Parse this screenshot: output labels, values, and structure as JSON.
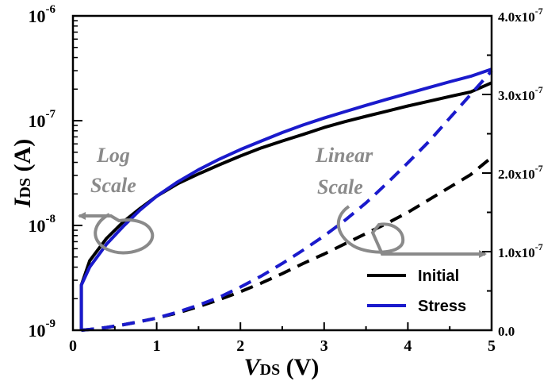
{
  "chart_data": {
    "type": "line",
    "x": [
      0.1,
      0.2,
      0.4,
      0.6,
      0.8,
      1.0,
      1.25,
      1.5,
      1.75,
      2.0,
      2.25,
      2.5,
      2.75,
      3.0,
      3.25,
      3.5,
      3.75,
      4.0,
      4.25,
      4.5,
      4.75,
      5.0
    ],
    "xlabel": {
      "main": "V",
      "sub": "DS",
      "unit": " (V)"
    },
    "xlim": [
      0,
      5
    ],
    "xticks": [
      "0",
      "1",
      "2",
      "3",
      "4",
      "5"
    ],
    "left_axis": {
      "label": {
        "main": "I",
        "sub": "DS",
        "unit": " (A)"
      },
      "scale": "log",
      "lim": [
        1e-09,
        1e-06
      ],
      "tick_labels": [
        {
          "base": "10",
          "exp": "-9"
        },
        {
          "base": "10",
          "exp": "-8"
        },
        {
          "base": "10",
          "exp": "-7"
        },
        {
          "base": "10",
          "exp": "-6"
        }
      ]
    },
    "right_axis": {
      "scale": "linear",
      "lim": [
        0,
        4e-07
      ],
      "tick_labels": [
        {
          "base": "0.0",
          "exp": ""
        },
        {
          "base": "1.0x10",
          "exp": "-7"
        },
        {
          "base": "2.0x10",
          "exp": "-7"
        },
        {
          "base": "3.0x10",
          "exp": "-7"
        },
        {
          "base": "4.0x10",
          "exp": "-7"
        }
      ]
    },
    "series": [
      {
        "name": "Initial",
        "axis": "left",
        "style": "solid",
        "color": "#000000",
        "values": [
          2.7e-09,
          4.6e-09,
          7.5e-09,
          1.08e-08,
          1.45e-08,
          1.9e-08,
          2.5e-08,
          3.1e-08,
          3.8e-08,
          4.6e-08,
          5.5e-08,
          6.4e-08,
          7.4e-08,
          8.6e-08,
          9.8e-08,
          1.1e-07,
          1.23e-07,
          1.38e-07,
          1.53e-07,
          1.7e-07,
          1.88e-07,
          2.3e-07
        ]
      },
      {
        "name": "Stress",
        "axis": "left",
        "style": "solid",
        "color": "#1a1acc",
        "values": [
          2.7e-09,
          4e-09,
          6.6e-09,
          9.8e-09,
          1.4e-08,
          1.9e-08,
          2.6e-08,
          3.4e-08,
          4.3e-08,
          5.3e-08,
          6.4e-08,
          7.7e-08,
          9.1e-08,
          1.06e-07,
          1.22e-07,
          1.4e-07,
          1.6e-07,
          1.82e-07,
          2.07e-07,
          2.35e-07,
          2.65e-07,
          3.1e-07
        ]
      },
      {
        "name": "Initial",
        "axis": "right",
        "style": "dashed",
        "color": "#000000",
        "values": [
          0.0,
          1e-09,
          3.5e-09,
          7e-09,
          1.1e-08,
          1.55e-08,
          2.2e-08,
          3e-08,
          3.9e-08,
          4.9e-08,
          6e-08,
          7.2e-08,
          8.5e-08,
          9.7e-08,
          1.1e-07,
          1.23e-07,
          1.36e-07,
          1.5e-07,
          1.66e-07,
          1.82e-07,
          1.98e-07,
          2.2e-07
        ]
      },
      {
        "name": "Stress",
        "axis": "right",
        "style": "dashed",
        "color": "#1a1acc",
        "values": [
          0.0,
          1e-09,
          3.5e-09,
          7e-09,
          1.1e-08,
          1.55e-08,
          2.3e-08,
          3.2e-08,
          4.2e-08,
          5.5e-08,
          6.9e-08,
          8.5e-08,
          1.02e-07,
          1.2e-07,
          1.4e-07,
          1.62e-07,
          1.87e-07,
          2.13e-07,
          2.4e-07,
          2.7e-07,
          3e-07,
          3.3e-07
        ]
      }
    ],
    "annotations": [
      {
        "lines": [
          "Log",
          "Scale"
        ],
        "color": "#8a8a8a"
      },
      {
        "lines": [
          "Linear",
          "Scale"
        ],
        "color": "#8a8a8a"
      }
    ],
    "legend": {
      "placement": "bottom-right",
      "items": [
        {
          "label": "Initial",
          "color": "#000000"
        },
        {
          "label": "Stress",
          "color": "#1a1acc"
        }
      ]
    },
    "grid": false
  }
}
